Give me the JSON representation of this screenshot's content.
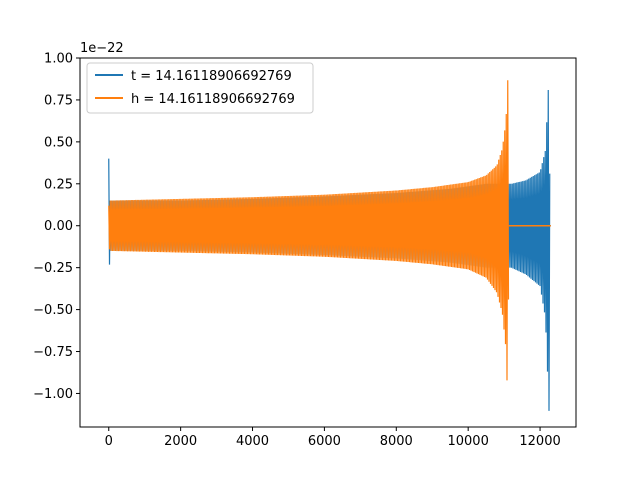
{
  "chart_data": {
    "type": "line",
    "title": "",
    "xlabel": "",
    "ylabel": "",
    "y_offset_label": "1e−22",
    "xlim": [
      -800,
      13000
    ],
    "ylim": [
      -1.2,
      1.0
    ],
    "x_ticks": [
      0,
      2000,
      4000,
      6000,
      8000,
      10000,
      12000
    ],
    "x_tick_labels": [
      "0",
      "2000",
      "4000",
      "6000",
      "8000",
      "10000",
      "12000"
    ],
    "y_ticks": [
      -1.0,
      -0.75,
      -0.5,
      -0.25,
      0.0,
      0.25,
      0.5,
      0.75,
      1.0
    ],
    "y_tick_labels": [
      "−1.00",
      "−0.75",
      "−0.50",
      "−0.25",
      "0.00",
      "0.25",
      "0.50",
      "0.75",
      "1.00"
    ],
    "grid": false,
    "legend_position": "top-left",
    "series": [
      {
        "name": "t = 14.16118906692769",
        "color": "#1f77b4",
        "envelope": {
          "x": [
            0,
            30,
            2000,
            4000,
            6000,
            8000,
            9500,
            10500,
            11100,
            11200,
            11600,
            12000,
            12150,
            12250,
            12280
          ],
          "upper": [
            0.4,
            0.15,
            0.15,
            0.16,
            0.175,
            0.195,
            0.22,
            0.25,
            0.25,
            0.25,
            0.27,
            0.32,
            0.45,
            0.91,
            0.0
          ],
          "lower": [
            -0.42,
            -0.15,
            -0.15,
            -0.16,
            -0.175,
            -0.195,
            -0.22,
            -0.25,
            -0.25,
            -0.25,
            -0.29,
            -0.36,
            -0.55,
            -1.11,
            0.0
          ]
        },
        "tail": {
          "x": [
            12280,
            12300
          ],
          "y": [
            0.0,
            0.0
          ]
        }
      },
      {
        "name": "h = 14.16118906692769",
        "color": "#ff7f0e",
        "envelope": {
          "x": [
            0,
            30,
            1000,
            2000,
            4000,
            6000,
            8000,
            9000,
            10000,
            10500,
            10800,
            10950,
            11050,
            11110,
            11130
          ],
          "upper": [
            0.12,
            0.15,
            0.155,
            0.16,
            0.17,
            0.185,
            0.21,
            0.23,
            0.26,
            0.3,
            0.36,
            0.46,
            0.62,
            0.91,
            0.0
          ],
          "lower": [
            -0.12,
            -0.15,
            -0.155,
            -0.16,
            -0.17,
            -0.185,
            -0.21,
            -0.23,
            -0.26,
            -0.31,
            -0.4,
            -0.52,
            -0.73,
            -1.11,
            0.0
          ]
        },
        "tail": {
          "x": [
            11130,
            12300
          ],
          "y": [
            0.0,
            0.0
          ]
        }
      }
    ]
  }
}
